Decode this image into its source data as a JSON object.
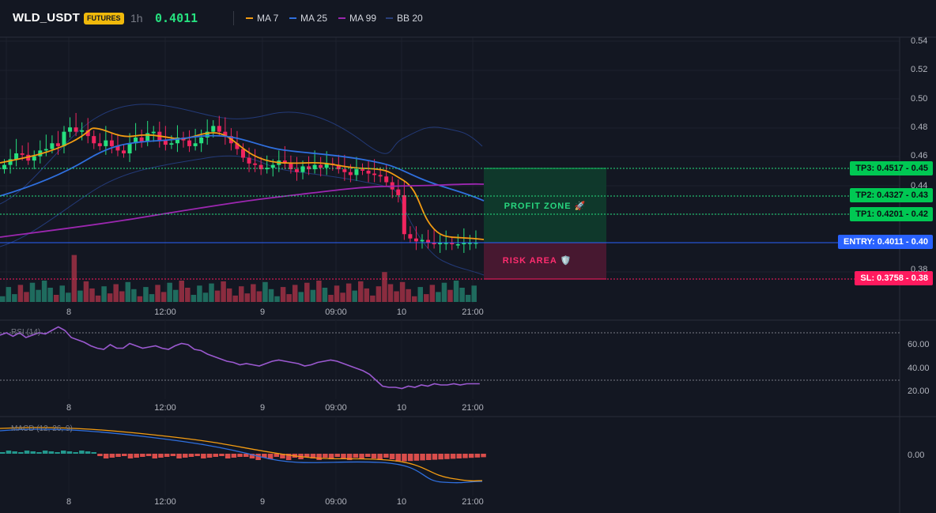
{
  "header": {
    "symbol": "WLD_USDT",
    "badge": "FUTURES",
    "timeframe": "1h",
    "price": "0.4011",
    "indicators": [
      {
        "label": "MA 7",
        "color": "#f39c12"
      },
      {
        "label": "MA 25",
        "color": "#2f6fde"
      },
      {
        "label": "MA 99",
        "color": "#9c27b0"
      },
      {
        "label": "BB 20",
        "color": "#2a3f7a"
      }
    ]
  },
  "price_axis": {
    "ticks": [
      "0.54",
      "0.52",
      "0.50",
      "0.48",
      "0.46",
      "0.44",
      "0.38"
    ],
    "levels": {
      "tp3": {
        "text": "TP3: 0.4517 - 0.45",
        "color": "#00c853"
      },
      "tp2": {
        "text": "TP2: 0.4327 - 0.43",
        "color": "#00c853"
      },
      "tp1": {
        "text": "TP1: 0.4201 - 0.42",
        "color": "#00c853"
      },
      "entry": {
        "text": "ENTRY: 0.4011 - 0.40",
        "color": "#2962ff"
      },
      "sl": {
        "text": "SL: 0.3758 - 0.38",
        "color": "#ff1a5e"
      }
    }
  },
  "zones": {
    "profit_label": "PROFIT ZONE 🚀",
    "risk_label": "RISK AREA 🛡️"
  },
  "time_axis": {
    "labels": [
      "8",
      "12:00",
      "9",
      "09:00",
      "10",
      "21:00"
    ]
  },
  "rsi": {
    "title": "RSI (14)",
    "ticks": [
      "60.00",
      "40.00",
      "20.00"
    ],
    "values": [
      68,
      70,
      67,
      70,
      66,
      68,
      70,
      69,
      72,
      75,
      72,
      66,
      64,
      62,
      59,
      57,
      56,
      60,
      57,
      57,
      61,
      59,
      57,
      58,
      59,
      57,
      56,
      59,
      61,
      60,
      56,
      55,
      52,
      50,
      48,
      46,
      45,
      43,
      44,
      43,
      42,
      44,
      46,
      47,
      46,
      45,
      44,
      42,
      43,
      45,
      46,
      47,
      46,
      44,
      42,
      40,
      38,
      35,
      30,
      25,
      24,
      24,
      23,
      25,
      24,
      26,
      25,
      27,
      26,
      26,
      27,
      26,
      27,
      27,
      27
    ]
  },
  "macd": {
    "title": "MACD (12, 26, 9)",
    "ticks": [
      "0.00"
    ]
  }
}
